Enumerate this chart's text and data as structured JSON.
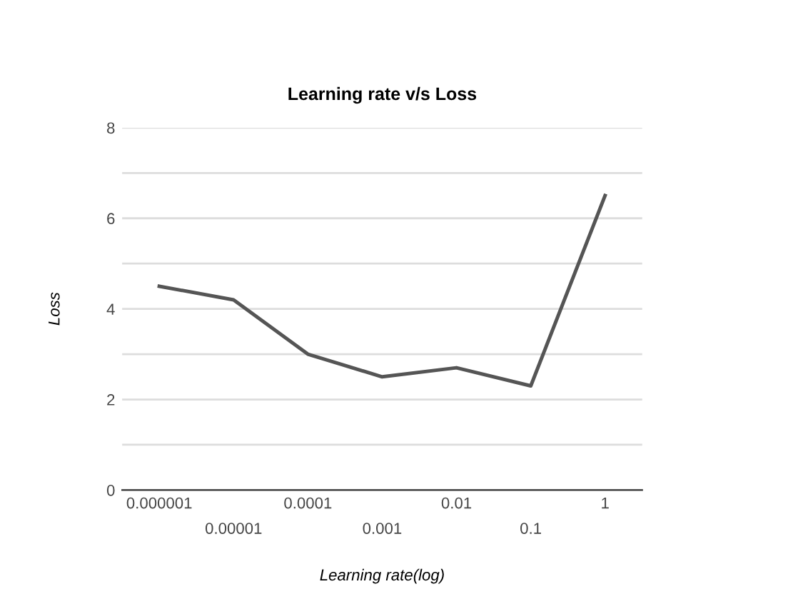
{
  "chart_data": {
    "type": "line",
    "title": "Learning rate v/s Loss",
    "xlabel": "Learning rate(log)",
    "ylabel": "Loss",
    "categories": [
      "0.000001",
      "0.00001",
      "0.0001",
      "0.001",
      "0.01",
      "0.1",
      "1"
    ],
    "series": [
      {
        "color": "#555555",
        "values": [
          4.5,
          4.2,
          3.0,
          2.5,
          2.7,
          2.3,
          6.5
        ]
      }
    ],
    "ylim": [
      0,
      8
    ],
    "yticks": [
      0,
      {
        "value": 1,
        "label": null
      },
      2,
      {
        "value": 3,
        "label": null
      },
      4,
      {
        "value": 5,
        "label": null
      },
      6,
      {
        "value": 7,
        "label": null
      },
      8
    ],
    "grid": "y",
    "marker": "none",
    "line_style": "solid"
  }
}
